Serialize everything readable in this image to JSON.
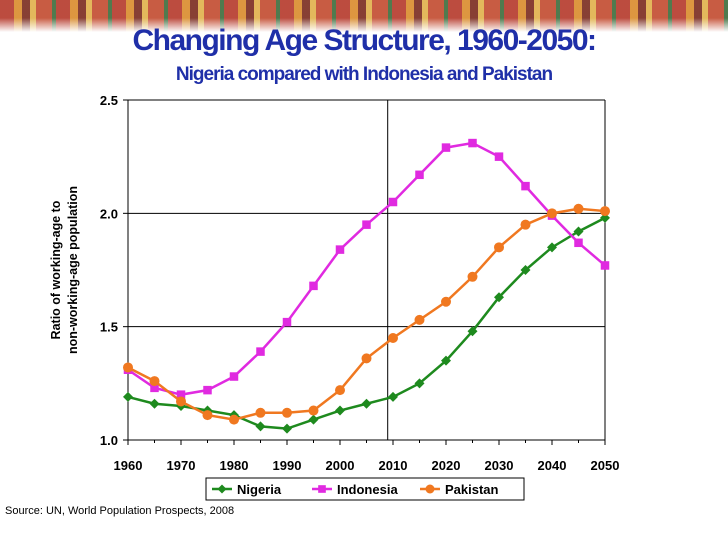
{
  "chart_data": {
    "type": "line",
    "title": "Changing Age Structure, 1960-2050:",
    "subtitle": "Nigeria compared with Indonesia and Pakistan",
    "ylabel_lines": [
      "Ratio of working-age to",
      "non-working-age population"
    ],
    "xlabel": "",
    "x": [
      1960,
      1965,
      1970,
      1975,
      1980,
      1985,
      1990,
      1995,
      2000,
      2005,
      2010,
      2015,
      2020,
      2025,
      2030,
      2035,
      2040,
      2045,
      2050
    ],
    "xticks": [
      "1960",
      "1970",
      "1980",
      "1990",
      "2000",
      "2010",
      "2020",
      "2030",
      "2040",
      "2050"
    ],
    "yticks": [
      "1.0",
      "1.5",
      "2.0",
      "2.5"
    ],
    "xlim": [
      1960,
      2050
    ],
    "ylim": [
      1.0,
      2.5
    ],
    "vline_x": 2009,
    "grid": "horizontal",
    "legend_position": "bottom",
    "series": [
      {
        "name": "Nigeria",
        "color": "#1e8a1e",
        "marker": "diamond",
        "values": [
          1.19,
          1.16,
          1.15,
          1.13,
          1.11,
          1.06,
          1.05,
          1.09,
          1.13,
          1.16,
          1.19,
          1.25,
          1.35,
          1.48,
          1.63,
          1.75,
          1.85,
          1.92,
          1.98
        ]
      },
      {
        "name": "Indonesia",
        "color": "#e02ae0",
        "marker": "square",
        "values": [
          1.31,
          1.23,
          1.2,
          1.22,
          1.28,
          1.39,
          1.52,
          1.68,
          1.84,
          1.95,
          2.05,
          2.17,
          2.29,
          2.31,
          2.25,
          2.12,
          1.99,
          1.87,
          1.77
        ]
      },
      {
        "name": "Pakistan",
        "color": "#f07820",
        "marker": "circle",
        "values": [
          1.32,
          1.26,
          1.17,
          1.11,
          1.09,
          1.12,
          1.12,
          1.13,
          1.22,
          1.36,
          1.45,
          1.53,
          1.61,
          1.72,
          1.85,
          1.95,
          2.0,
          2.02,
          2.01
        ]
      }
    ]
  },
  "source": "Source: UN, World Population Prospects, 2008"
}
